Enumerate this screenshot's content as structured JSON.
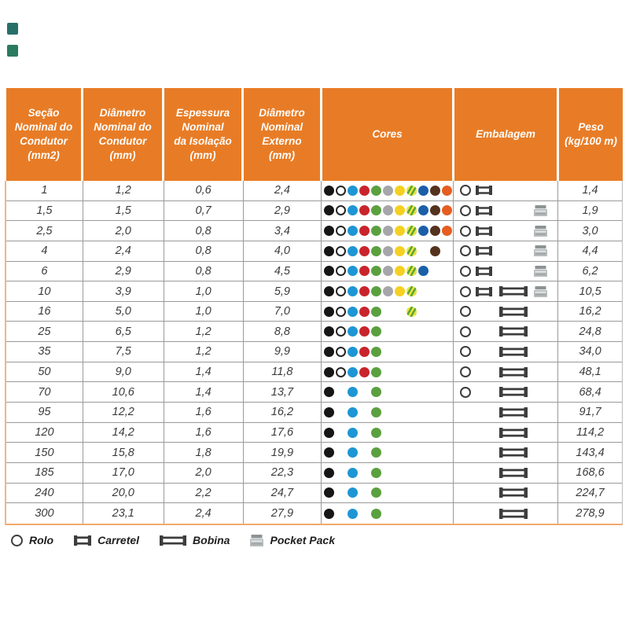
{
  "colors": {
    "header_orange": "#e87c26",
    "accent_border": "#f2a96d",
    "icon_gray": "#3d3d3d"
  },
  "table": {
    "columns": [
      {
        "id": "secao",
        "label": "Seção\nNominal do\nCondutor\n(mm2)"
      },
      {
        "id": "diametro_condutor",
        "label": "Diâmetro\nNominal do\nCondutor\n(mm)"
      },
      {
        "id": "espessura",
        "label": "Espessura\nNominal\nda Isolação\n(mm)"
      },
      {
        "id": "diametro_externo",
        "label": "Diâmetro\nNominal\nExterno\n(mm)"
      },
      {
        "id": "cores",
        "label": "Cores"
      },
      {
        "id": "embalagem",
        "label": "Embalagem"
      },
      {
        "id": "peso",
        "label": "Peso\n(kg/100 m)"
      }
    ],
    "color_map": {
      "preto": "#161616",
      "branco": "#ffffff",
      "azul": "#1e96d4",
      "vermelho": "#c9242c",
      "verde": "#5ba03f",
      "cinza": "#a6a6aa",
      "amarelo": "#f5d021",
      "verde_amarelo": "verde/amarelo listrado",
      "azul_escuro": "#1a5fa8",
      "marrom": "#53331d",
      "laranja": "#e55d20"
    },
    "rows": [
      {
        "secao": "1",
        "diametro_condutor": "1,2",
        "espessura": "0,6",
        "diametro_externo": "2,4",
        "peso": "1,4",
        "cores": [
          "preto",
          "branco",
          "azul",
          "vermelho",
          "verde",
          "cinza",
          "amarelo",
          "verde_amarelo",
          "azul_escuro",
          "marrom",
          "laranja"
        ],
        "embalagem": [
          "rolo",
          "carretel",
          null,
          null
        ]
      },
      {
        "secao": "1,5",
        "diametro_condutor": "1,5",
        "espessura": "0,7",
        "diametro_externo": "2,9",
        "peso": "1,9",
        "cores": [
          "preto",
          "branco",
          "azul",
          "vermelho",
          "verde",
          "cinza",
          "amarelo",
          "verde_amarelo",
          "azul_escuro",
          "marrom",
          "laranja"
        ],
        "embalagem": [
          "rolo",
          "carretel",
          null,
          "pocket_pack"
        ]
      },
      {
        "secao": "2,5",
        "diametro_condutor": "2,0",
        "espessura": "0,8",
        "diametro_externo": "3,4",
        "peso": "3,0",
        "cores": [
          "preto",
          "branco",
          "azul",
          "vermelho",
          "verde",
          "cinza",
          "amarelo",
          "verde_amarelo",
          "azul_escuro",
          "marrom",
          "laranja"
        ],
        "embalagem": [
          "rolo",
          "carretel",
          null,
          "pocket_pack"
        ]
      },
      {
        "secao": "4",
        "diametro_condutor": "2,4",
        "espessura": "0,8",
        "diametro_externo": "4,0",
        "peso": "4,4",
        "cores": [
          "preto",
          "branco",
          "azul",
          "vermelho",
          "verde",
          "cinza",
          "amarelo",
          "verde_amarelo",
          null,
          "marrom",
          null
        ],
        "embalagem": [
          "rolo",
          "carretel",
          null,
          "pocket_pack"
        ]
      },
      {
        "secao": "6",
        "diametro_condutor": "2,9",
        "espessura": "0,8",
        "diametro_externo": "4,5",
        "peso": "6,2",
        "cores": [
          "preto",
          "branco",
          "azul",
          "vermelho",
          "verde",
          "cinza",
          "amarelo",
          "verde_amarelo",
          "azul_escuro",
          null,
          null
        ],
        "embalagem": [
          "rolo",
          "carretel",
          null,
          "pocket_pack"
        ]
      },
      {
        "secao": "10",
        "diametro_condutor": "3,9",
        "espessura": "1,0",
        "diametro_externo": "5,9",
        "peso": "10,5",
        "cores": [
          "preto",
          "branco",
          "azul",
          "vermelho",
          "verde",
          "cinza",
          "amarelo",
          "verde_amarelo",
          null,
          null,
          null
        ],
        "embalagem": [
          "rolo",
          "carretel",
          "bobina",
          "pocket_pack"
        ]
      },
      {
        "secao": "16",
        "diametro_condutor": "5,0",
        "espessura": "1,0",
        "diametro_externo": "7,0",
        "peso": "16,2",
        "cores": [
          "preto",
          "branco",
          "azul",
          "vermelho",
          "verde",
          null,
          null,
          "verde_amarelo",
          null,
          null,
          null
        ],
        "embalagem": [
          "rolo",
          null,
          "bobina",
          null
        ]
      },
      {
        "secao": "25",
        "diametro_condutor": "6,5",
        "espessura": "1,2",
        "diametro_externo": "8,8",
        "peso": "24,8",
        "cores": [
          "preto",
          "branco",
          "azul",
          "vermelho",
          "verde",
          null,
          null,
          null,
          null,
          null,
          null
        ],
        "embalagem": [
          "rolo",
          null,
          "bobina",
          null
        ]
      },
      {
        "secao": "35",
        "diametro_condutor": "7,5",
        "espessura": "1,2",
        "diametro_externo": "9,9",
        "peso": "34,0",
        "cores": [
          "preto",
          "branco",
          "azul",
          "vermelho",
          "verde",
          null,
          null,
          null,
          null,
          null,
          null
        ],
        "embalagem": [
          "rolo",
          null,
          "bobina",
          null
        ]
      },
      {
        "secao": "50",
        "diametro_condutor": "9,0",
        "espessura": "1,4",
        "diametro_externo": "11,8",
        "peso": "48,1",
        "cores": [
          "preto",
          "branco",
          "azul",
          "vermelho",
          "verde",
          null,
          null,
          null,
          null,
          null,
          null
        ],
        "embalagem": [
          "rolo",
          null,
          "bobina",
          null
        ]
      },
      {
        "secao": "70",
        "diametro_condutor": "10,6",
        "espessura": "1,4",
        "diametro_externo": "13,7",
        "peso": "68,4",
        "cores": [
          "preto",
          null,
          "azul",
          null,
          "verde",
          null,
          null,
          null,
          null,
          null,
          null
        ],
        "embalagem": [
          "rolo",
          null,
          "bobina",
          null
        ]
      },
      {
        "secao": "95",
        "diametro_condutor": "12,2",
        "espessura": "1,6",
        "diametro_externo": "16,2",
        "peso": "91,7",
        "cores": [
          "preto",
          null,
          "azul",
          null,
          "verde",
          null,
          null,
          null,
          null,
          null,
          null
        ],
        "embalagem": [
          null,
          null,
          "bobina",
          null
        ]
      },
      {
        "secao": "120",
        "diametro_condutor": "14,2",
        "espessura": "1,6",
        "diametro_externo": "17,6",
        "peso": "114,2",
        "cores": [
          "preto",
          null,
          "azul",
          null,
          "verde",
          null,
          null,
          null,
          null,
          null,
          null
        ],
        "embalagem": [
          null,
          null,
          "bobina",
          null
        ]
      },
      {
        "secao": "150",
        "diametro_condutor": "15,8",
        "espessura": "1,8",
        "diametro_externo": "19,9",
        "peso": "143,4",
        "cores": [
          "preto",
          null,
          "azul",
          null,
          "verde",
          null,
          null,
          null,
          null,
          null,
          null
        ],
        "embalagem": [
          null,
          null,
          "bobina",
          null
        ]
      },
      {
        "secao": "185",
        "diametro_condutor": "17,0",
        "espessura": "2,0",
        "diametro_externo": "22,3",
        "peso": "168,6",
        "cores": [
          "preto",
          null,
          "azul",
          null,
          "verde",
          null,
          null,
          null,
          null,
          null,
          null
        ],
        "embalagem": [
          null,
          null,
          "bobina",
          null
        ]
      },
      {
        "secao": "240",
        "diametro_condutor": "20,0",
        "espessura": "2,2",
        "diametro_externo": "24,7",
        "peso": "224,7",
        "cores": [
          "preto",
          null,
          "azul",
          null,
          "verde",
          null,
          null,
          null,
          null,
          null,
          null
        ],
        "embalagem": [
          null,
          null,
          "bobina",
          null
        ]
      },
      {
        "secao": "300",
        "diametro_condutor": "23,1",
        "espessura": "2,4",
        "diametro_externo": "27,9",
        "peso": "278,9",
        "cores": [
          "preto",
          null,
          "azul",
          null,
          "verde",
          null,
          null,
          null,
          null,
          null,
          null
        ],
        "embalagem": [
          null,
          null,
          "bobina",
          null
        ]
      }
    ]
  },
  "legend": {
    "items": [
      {
        "icon": "rolo-icon",
        "label": "Rolo"
      },
      {
        "icon": "carretel-icon",
        "label": "Carretel"
      },
      {
        "icon": "bobina-icon",
        "label": "Bobina"
      },
      {
        "icon": "pocket-pack-icon",
        "label": "Pocket Pack"
      }
    ]
  }
}
